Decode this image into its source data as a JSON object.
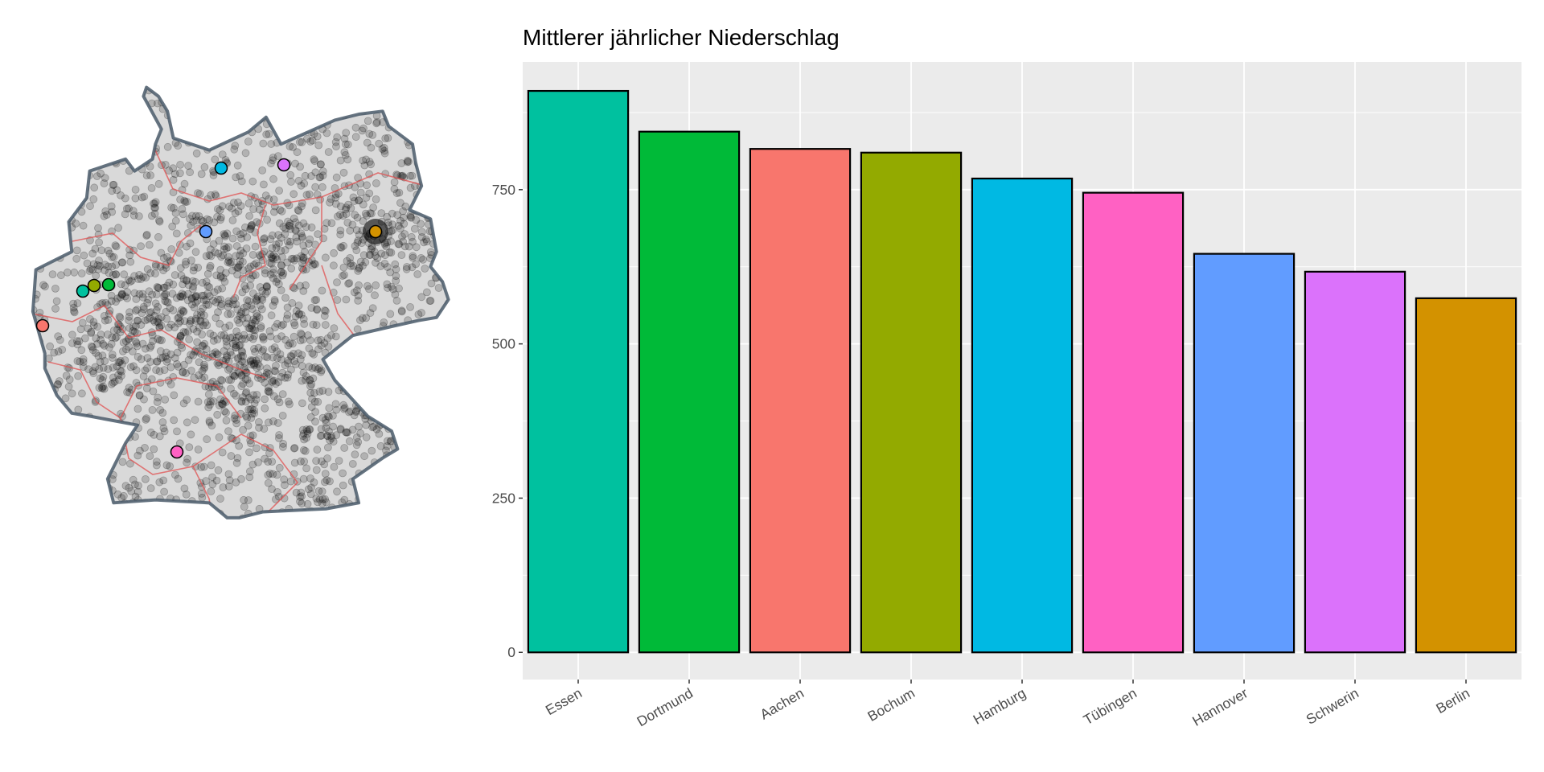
{
  "chart_data": [
    {
      "type": "map",
      "markers": [
        {
          "name": "Hamburg",
          "color": "#00B9E3"
        },
        {
          "name": "Schwerin",
          "color": "#DB72FB"
        },
        {
          "name": "Hannover",
          "color": "#619CFF"
        },
        {
          "name": "Berlin",
          "color": "#D39200"
        },
        {
          "name": "Essen",
          "color": "#00C19F"
        },
        {
          "name": "Bochum",
          "color": "#93AA00"
        },
        {
          "name": "Dortmund",
          "color": "#00BA38"
        },
        {
          "name": "Aachen",
          "color": "#F8766D"
        },
        {
          "name": "Tübingen",
          "color": "#FF61C3"
        }
      ],
      "colors": {
        "points": "#000000",
        "outline": "#4a5a6a",
        "state_borders": "#e05050"
      }
    },
    {
      "type": "bar",
      "title": "Mittlerer jährlicher Niederschlag",
      "xlabel": "",
      "ylabel": "",
      "categories": [
        "Essen",
        "Dortmund",
        "Aachen",
        "Bochum",
        "Hamburg",
        "Tübingen",
        "Hannover",
        "Schwerin",
        "Berlin"
      ],
      "values": [
        910,
        844,
        816,
        810,
        768,
        745,
        646,
        617,
        574
      ],
      "colors": [
        "#00C19F",
        "#00BA38",
        "#F8766D",
        "#93AA00",
        "#00B9E3",
        "#FF61C3",
        "#619CFF",
        "#DB72FB",
        "#D39200"
      ],
      "ylim": [
        -44,
        957
      ],
      "yticks": [
        0,
        250,
        500,
        750
      ],
      "ytick_labels": [
        "0",
        "250",
        "500",
        "750"
      ],
      "grid": true,
      "legend": "none",
      "panel_background": "#EBEBEB"
    }
  ]
}
